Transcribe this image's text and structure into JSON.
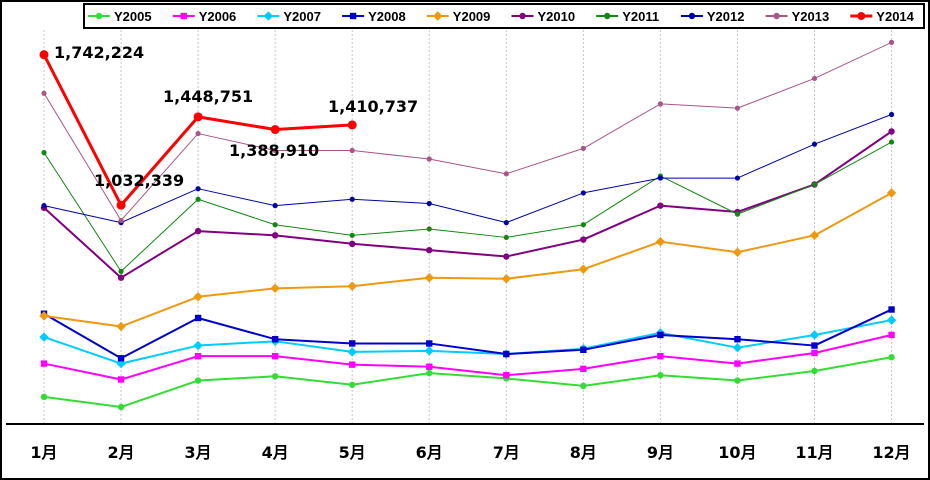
{
  "chart_data": {
    "type": "line",
    "title": "",
    "xlabel": "",
    "ylabel": "",
    "categories": [
      "1月",
      "2月",
      "3月",
      "4月",
      "5月",
      "6月",
      "7月",
      "8月",
      "9月",
      "10月",
      "11月",
      "12月"
    ],
    "ylim": [
      0,
      2000000
    ],
    "grid": "vertical",
    "legend": "top",
    "series": [
      {
        "name": "Y2005",
        "color": "#33dd33",
        "marker": "circle",
        "width": 2,
        "values": [
          128000,
          80000,
          205000,
          225000,
          185000,
          240000,
          215000,
          180000,
          230000,
          205000,
          250000,
          315000
        ]
      },
      {
        "name": "Y2006",
        "color": "#ff00ff",
        "marker": "square",
        "width": 2,
        "values": [
          285000,
          210000,
          320000,
          320000,
          280000,
          270000,
          230000,
          260000,
          320000,
          285000,
          335000,
          420000
        ]
      },
      {
        "name": "Y2007",
        "color": "#00ccff",
        "marker": "diamond",
        "width": 2,
        "values": [
          410000,
          285000,
          370000,
          390000,
          340000,
          345000,
          330000,
          355000,
          430000,
          360000,
          420000,
          490000
        ]
      },
      {
        "name": "Y2008",
        "color": "#0000cc",
        "marker": "square",
        "width": 2,
        "values": [
          520000,
          310000,
          500000,
          400000,
          380000,
          380000,
          330000,
          350000,
          420000,
          400000,
          370000,
          540000
        ]
      },
      {
        "name": "Y2009",
        "color": "#ee9911",
        "marker": "diamond",
        "width": 2,
        "values": [
          510000,
          460000,
          600000,
          640000,
          650000,
          690000,
          685000,
          730000,
          860000,
          810000,
          890000,
          1090000
        ]
      },
      {
        "name": "Y2010",
        "color": "#800080",
        "marker": "circle",
        "width": 2,
        "values": [
          1020000,
          690000,
          910000,
          890000,
          850000,
          820000,
          790000,
          870000,
          1030000,
          1000000,
          1130000,
          1380000
        ]
      },
      {
        "name": "Y2011",
        "color": "#118811",
        "marker": "circle",
        "width": 1,
        "values": [
          1280000,
          720000,
          1060000,
          940000,
          890000,
          920000,
          880000,
          940000,
          1170000,
          990000,
          1130000,
          1330000
        ]
      },
      {
        "name": "Y2012",
        "color": "#0000aa",
        "marker": "circle",
        "width": 1,
        "values": [
          1030000,
          950000,
          1110000,
          1030000,
          1060000,
          1040000,
          950000,
          1090000,
          1160000,
          1160000,
          1320000,
          1460000
        ]
      },
      {
        "name": "Y2013",
        "color": "#aa5588",
        "marker": "circle",
        "width": 1,
        "values": [
          1560000,
          960000,
          1370000,
          1290000,
          1290000,
          1250000,
          1180000,
          1300000,
          1510000,
          1490000,
          1630000,
          1800000
        ]
      },
      {
        "name": "Y2014",
        "color": "#ff0000",
        "marker": "circle",
        "width": 3,
        "values": [
          1742224,
          1032339,
          1448751,
          1388910,
          1410737,
          null,
          null,
          null,
          null,
          null,
          null,
          null
        ]
      }
    ],
    "annotations": [
      "1,742,224",
      "1,032,339",
      "1,448,751",
      "1,388,910",
      "1,410,737"
    ]
  }
}
